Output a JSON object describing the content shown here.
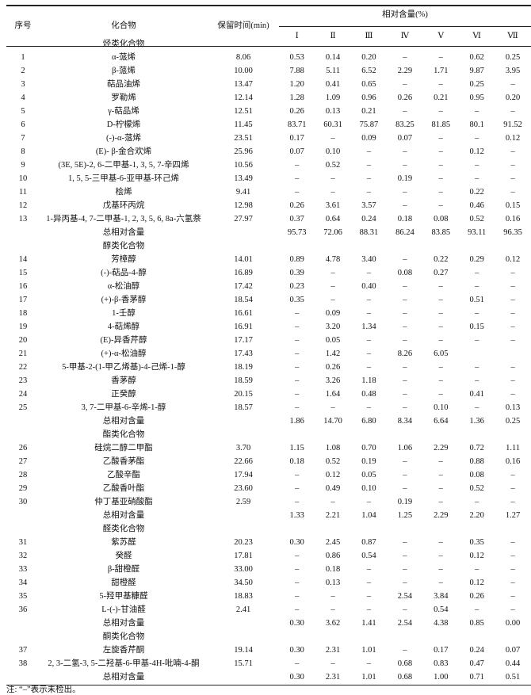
{
  "header": {
    "seq": "序号",
    "compound": "化合物",
    "retention": "保留时间(min)",
    "relative": "相对含量(%)",
    "samples": [
      "Ⅰ",
      "Ⅱ",
      "Ⅲ",
      "Ⅳ",
      "Ⅴ",
      "Ⅵ",
      "Ⅶ"
    ]
  },
  "groups": [
    {
      "title": "烃类化合物",
      "rows": [
        {
          "no": "1",
          "name": "α-蒎烯",
          "rt": "8.06",
          "v": [
            "0.53",
            "0.14",
            "0.20",
            "–",
            "–",
            "0.62",
            "0.25"
          ]
        },
        {
          "no": "2",
          "name": "β-蒎烯",
          "rt": "10.00",
          "v": [
            "7.88",
            "5.11",
            "6.52",
            "2.29",
            "1.71",
            "9.87",
            "3.95"
          ]
        },
        {
          "no": "3",
          "name": "萜品油烯",
          "rt": "13.47",
          "v": [
            "1.20",
            "0.41",
            "0.65",
            "–",
            "–",
            "0.25",
            "–"
          ]
        },
        {
          "no": "4",
          "name": "罗勒烯",
          "rt": "12.14",
          "v": [
            "1.28",
            "1.09",
            "0.96",
            "0.26",
            "0.21",
            "0.95",
            "0.20"
          ]
        },
        {
          "no": "5",
          "name": "γ-萜品烯",
          "rt": "12.51",
          "v": [
            "0.26",
            "0.13",
            "0.21",
            "–",
            "–",
            "–",
            "–"
          ]
        },
        {
          "no": "6",
          "name": "D-柠檬烯",
          "rt": "11.45",
          "v": [
            "83.71",
            "60.31",
            "75.87",
            "83.25",
            "81.85",
            "80.1",
            "91.52"
          ]
        },
        {
          "no": "7",
          "name": "(-)-α-蒎烯",
          "rt": "23.51",
          "v": [
            "0.17",
            "–",
            "0.09",
            "0.07",
            "–",
            "–",
            "0.12"
          ]
        },
        {
          "no": "8",
          "name": "(E)- β-金合欢烯",
          "rt": "25.96",
          "v": [
            "0.07",
            "0.10",
            "–",
            "–",
            "–",
            "0.12",
            "–"
          ]
        },
        {
          "no": "9",
          "name": "(3E, 5E)-2, 6-二甲基-1, 3, 5, 7-辛四烯",
          "rt": "10.56",
          "v": [
            "–",
            "0.52",
            "–",
            "–",
            "–",
            "–",
            "–"
          ]
        },
        {
          "no": "10",
          "name": "1, 5, 5-三甲基-6-亚甲基-环己烯",
          "rt": "13.49",
          "v": [
            "–",
            "–",
            "–",
            "0.19",
            "–",
            "–",
            "–"
          ]
        },
        {
          "no": "11",
          "name": "桧烯",
          "rt": "9.41",
          "v": [
            "–",
            "–",
            "–",
            "–",
            "–",
            "0.22",
            "–"
          ]
        },
        {
          "no": "12",
          "name": "戊基环丙烷",
          "rt": "12.98",
          "v": [
            "0.26",
            "3.61",
            "3.57",
            "–",
            "–",
            "0.46",
            "0.15"
          ]
        },
        {
          "no": "13",
          "name": "1-异丙基-4, 7-二甲基-1, 2, 3, 5, 6, 8a-六氢萘",
          "rt": "27.97",
          "v": [
            "0.37",
            "0.64",
            "0.24",
            "0.18",
            "0.08",
            "0.52",
            "0.16"
          ]
        }
      ],
      "total_label": "总相对含量",
      "total": [
        "95.73",
        "72.06",
        "88.31",
        "86.24",
        "83.85",
        "93.11",
        "96.35"
      ]
    },
    {
      "title": "醇类化合物",
      "rows": [
        {
          "no": "14",
          "name": "芳樟醇",
          "rt": "14.01",
          "v": [
            "0.89",
            "4.78",
            "3.40",
            "–",
            "0.22",
            "0.29",
            "0.12"
          ]
        },
        {
          "no": "15",
          "name": "(-)-萜品-4-醇",
          "rt": "16.89",
          "v": [
            "0.39",
            "–",
            "–",
            "0.08",
            "0.27",
            "–",
            "–"
          ]
        },
        {
          "no": "16",
          "name": "α-松油醇",
          "rt": "17.42",
          "v": [
            "0.23",
            "–",
            "0.40",
            "–",
            "–",
            "–",
            "–"
          ]
        },
        {
          "no": "17",
          "name": "(+)-β-香茅醇",
          "rt": "18.54",
          "v": [
            "0.35",
            "–",
            "–",
            "–",
            "–",
            "0.51",
            "–"
          ]
        },
        {
          "no": "18",
          "name": "1-壬醇",
          "rt": "16.61",
          "v": [
            "–",
            "0.09",
            "–",
            "–",
            "–",
            "–",
            "–"
          ]
        },
        {
          "no": "19",
          "name": "4-萜烯醇",
          "rt": "16.91",
          "v": [
            "–",
            "3.20",
            "1.34",
            "–",
            "–",
            "0.15",
            "–"
          ]
        },
        {
          "no": "20",
          "name": "(E)-异香芹醇",
          "rt": "17.17",
          "v": [
            "–",
            "0.05",
            "–",
            "–",
            "–",
            "–",
            "–"
          ]
        },
        {
          "no": "21",
          "name": "(+)-α-松油醇",
          "rt": "17.43",
          "v": [
            "–",
            "1.42",
            "–",
            "8.26",
            "6.05",
            "",
            ""
          ]
        },
        {
          "no": "22",
          "name": "5-甲基-2-(1-甲乙烯基)-4-己烯-1-醇",
          "rt": "18.19",
          "v": [
            "–",
            "0.26",
            "–",
            "–",
            "–",
            "–",
            "–"
          ]
        },
        {
          "no": "23",
          "name": "香茅醇",
          "rt": "18.59",
          "v": [
            "–",
            "3.26",
            "1.18",
            "–",
            "–",
            "–",
            "–"
          ]
        },
        {
          "no": "24",
          "name": "正癸醇",
          "rt": "20.15",
          "v": [
            "–",
            "1.64",
            "0.48",
            "–",
            "–",
            "0.41",
            "–"
          ]
        },
        {
          "no": "25",
          "name": "3, 7-二甲基-6-辛烯-1-醇",
          "rt": "18.57",
          "v": [
            "–",
            "–",
            "–",
            "–",
            "0.10",
            "–",
            "0.13"
          ]
        }
      ],
      "total_label": "总相对含量",
      "total": [
        "1.86",
        "14.70",
        "6.80",
        "8.34",
        "6.64",
        "1.36",
        "0.25"
      ]
    },
    {
      "title": "酯类化合物",
      "rows": [
        {
          "no": "26",
          "name": "硅烷二醇二甲酯",
          "rt": "3.70",
          "v": [
            "1.15",
            "1.08",
            "0.70",
            "1.06",
            "2.29",
            "0.72",
            "1.11"
          ]
        },
        {
          "no": "27",
          "name": "乙酸香茅酯",
          "rt": "22.66",
          "v": [
            "0.18",
            "0.52",
            "0.19",
            "–",
            "–",
            "0.88",
            "0.16"
          ]
        },
        {
          "no": "28",
          "name": "乙酸辛酯",
          "rt": "17.94",
          "v": [
            "–",
            "0.12",
            "0.05",
            "–",
            "–",
            "0.08",
            "–"
          ]
        },
        {
          "no": "29",
          "name": "乙酸香叶酯",
          "rt": "23.60",
          "v": [
            "–",
            "0.49",
            "0.10",
            "–",
            "–",
            "0.52",
            "–"
          ]
        },
        {
          "no": "30",
          "name": "仲丁基亚硝酸酯",
          "rt": "2.59",
          "v": [
            "–",
            "–",
            "–",
            "0.19",
            "–",
            "–",
            "–"
          ]
        }
      ],
      "total_label": "总相对含量",
      "total": [
        "1.33",
        "2.21",
        "1.04",
        "1.25",
        "2.29",
        "2.20",
        "1.27"
      ]
    },
    {
      "title": "醛类化合物",
      "rows": [
        {
          "no": "31",
          "name": "紫苏醛",
          "rt": "20.23",
          "v": [
            "0.30",
            "2.45",
            "0.87",
            "–",
            "–",
            "0.35",
            "–"
          ]
        },
        {
          "no": "32",
          "name": "癸醛",
          "rt": "17.81",
          "v": [
            "–",
            "0.86",
            "0.54",
            "–",
            "–",
            "0.12",
            "–"
          ]
        },
        {
          "no": "33",
          "name": "β-甜橙醛",
          "rt": "33.00",
          "v": [
            "–",
            "0.18",
            "–",
            "–",
            "–",
            "–",
            "–"
          ]
        },
        {
          "no": "34",
          "name": "甜橙醛",
          "rt": "34.50",
          "v": [
            "–",
            "0.13",
            "–",
            "–",
            "–",
            "0.12",
            "–"
          ]
        },
        {
          "no": "35",
          "name": "5-羟甲基糠醛",
          "rt": "18.83",
          "v": [
            "–",
            "–",
            "–",
            "2.54",
            "3.84",
            "0.26",
            "–"
          ]
        },
        {
          "no": "36",
          "name": "L-(-)-甘油醛",
          "rt": "2.41",
          "v": [
            "–",
            "–",
            "–",
            "–",
            "0.54",
            "–",
            "–"
          ]
        }
      ],
      "total_label": "总相对含量",
      "total": [
        "0.30",
        "3.62",
        "1.41",
        "2.54",
        "4.38",
        "0.85",
        "0.00"
      ]
    },
    {
      "title": "酮类化合物",
      "rows": [
        {
          "no": "37",
          "name": "左旋香芹酮",
          "rt": "19.14",
          "v": [
            "0.30",
            "2.31",
            "1.01",
            "–",
            "0.17",
            "0.24",
            "0.07"
          ]
        },
        {
          "no": "38",
          "name": "2, 3-二氢-3, 5-二羟基-6-甲基-4H-吡喃-4-酮",
          "rt": "15.71",
          "v": [
            "–",
            "–",
            "–",
            "0.68",
            "0.83",
            "0.47",
            "0.44"
          ]
        }
      ],
      "total_label": "总相对含量",
      "total": [
        "0.30",
        "2.31",
        "1.01",
        "0.68",
        "1.00",
        "0.71",
        "0.51"
      ]
    }
  ],
  "note": "注: “–”表示未检出。"
}
